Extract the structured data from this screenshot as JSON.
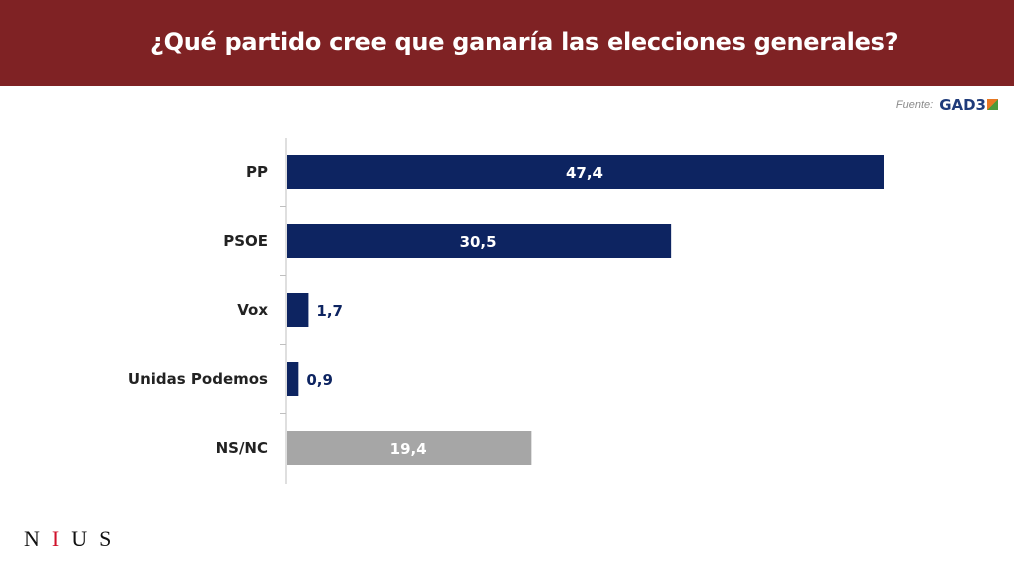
{
  "header": {
    "title": "¿Qué partido cree que ganaría las elecciones generales?"
  },
  "source": {
    "label": "Fuente:",
    "logo_text": "GAD3"
  },
  "brand": {
    "logo_text": "NIUS"
  },
  "chart_data": {
    "type": "bar",
    "orientation": "horizontal",
    "title": "¿Qué partido cree que ganaría las elecciones generales?",
    "categories": [
      "PP",
      "PSOE",
      "Vox",
      "Unidas Podemos",
      "NS/NC"
    ],
    "values": [
      47.4,
      30.5,
      1.7,
      0.9,
      19.4
    ],
    "labels": [
      "47,4",
      "30,5",
      "1,7",
      "0,9",
      "19,4"
    ],
    "colors": [
      "#0d2461",
      "#0d2461",
      "#0d2461",
      "#0d2461",
      "#a6a6a6"
    ],
    "xlim": [
      0,
      50
    ],
    "grid": false
  }
}
